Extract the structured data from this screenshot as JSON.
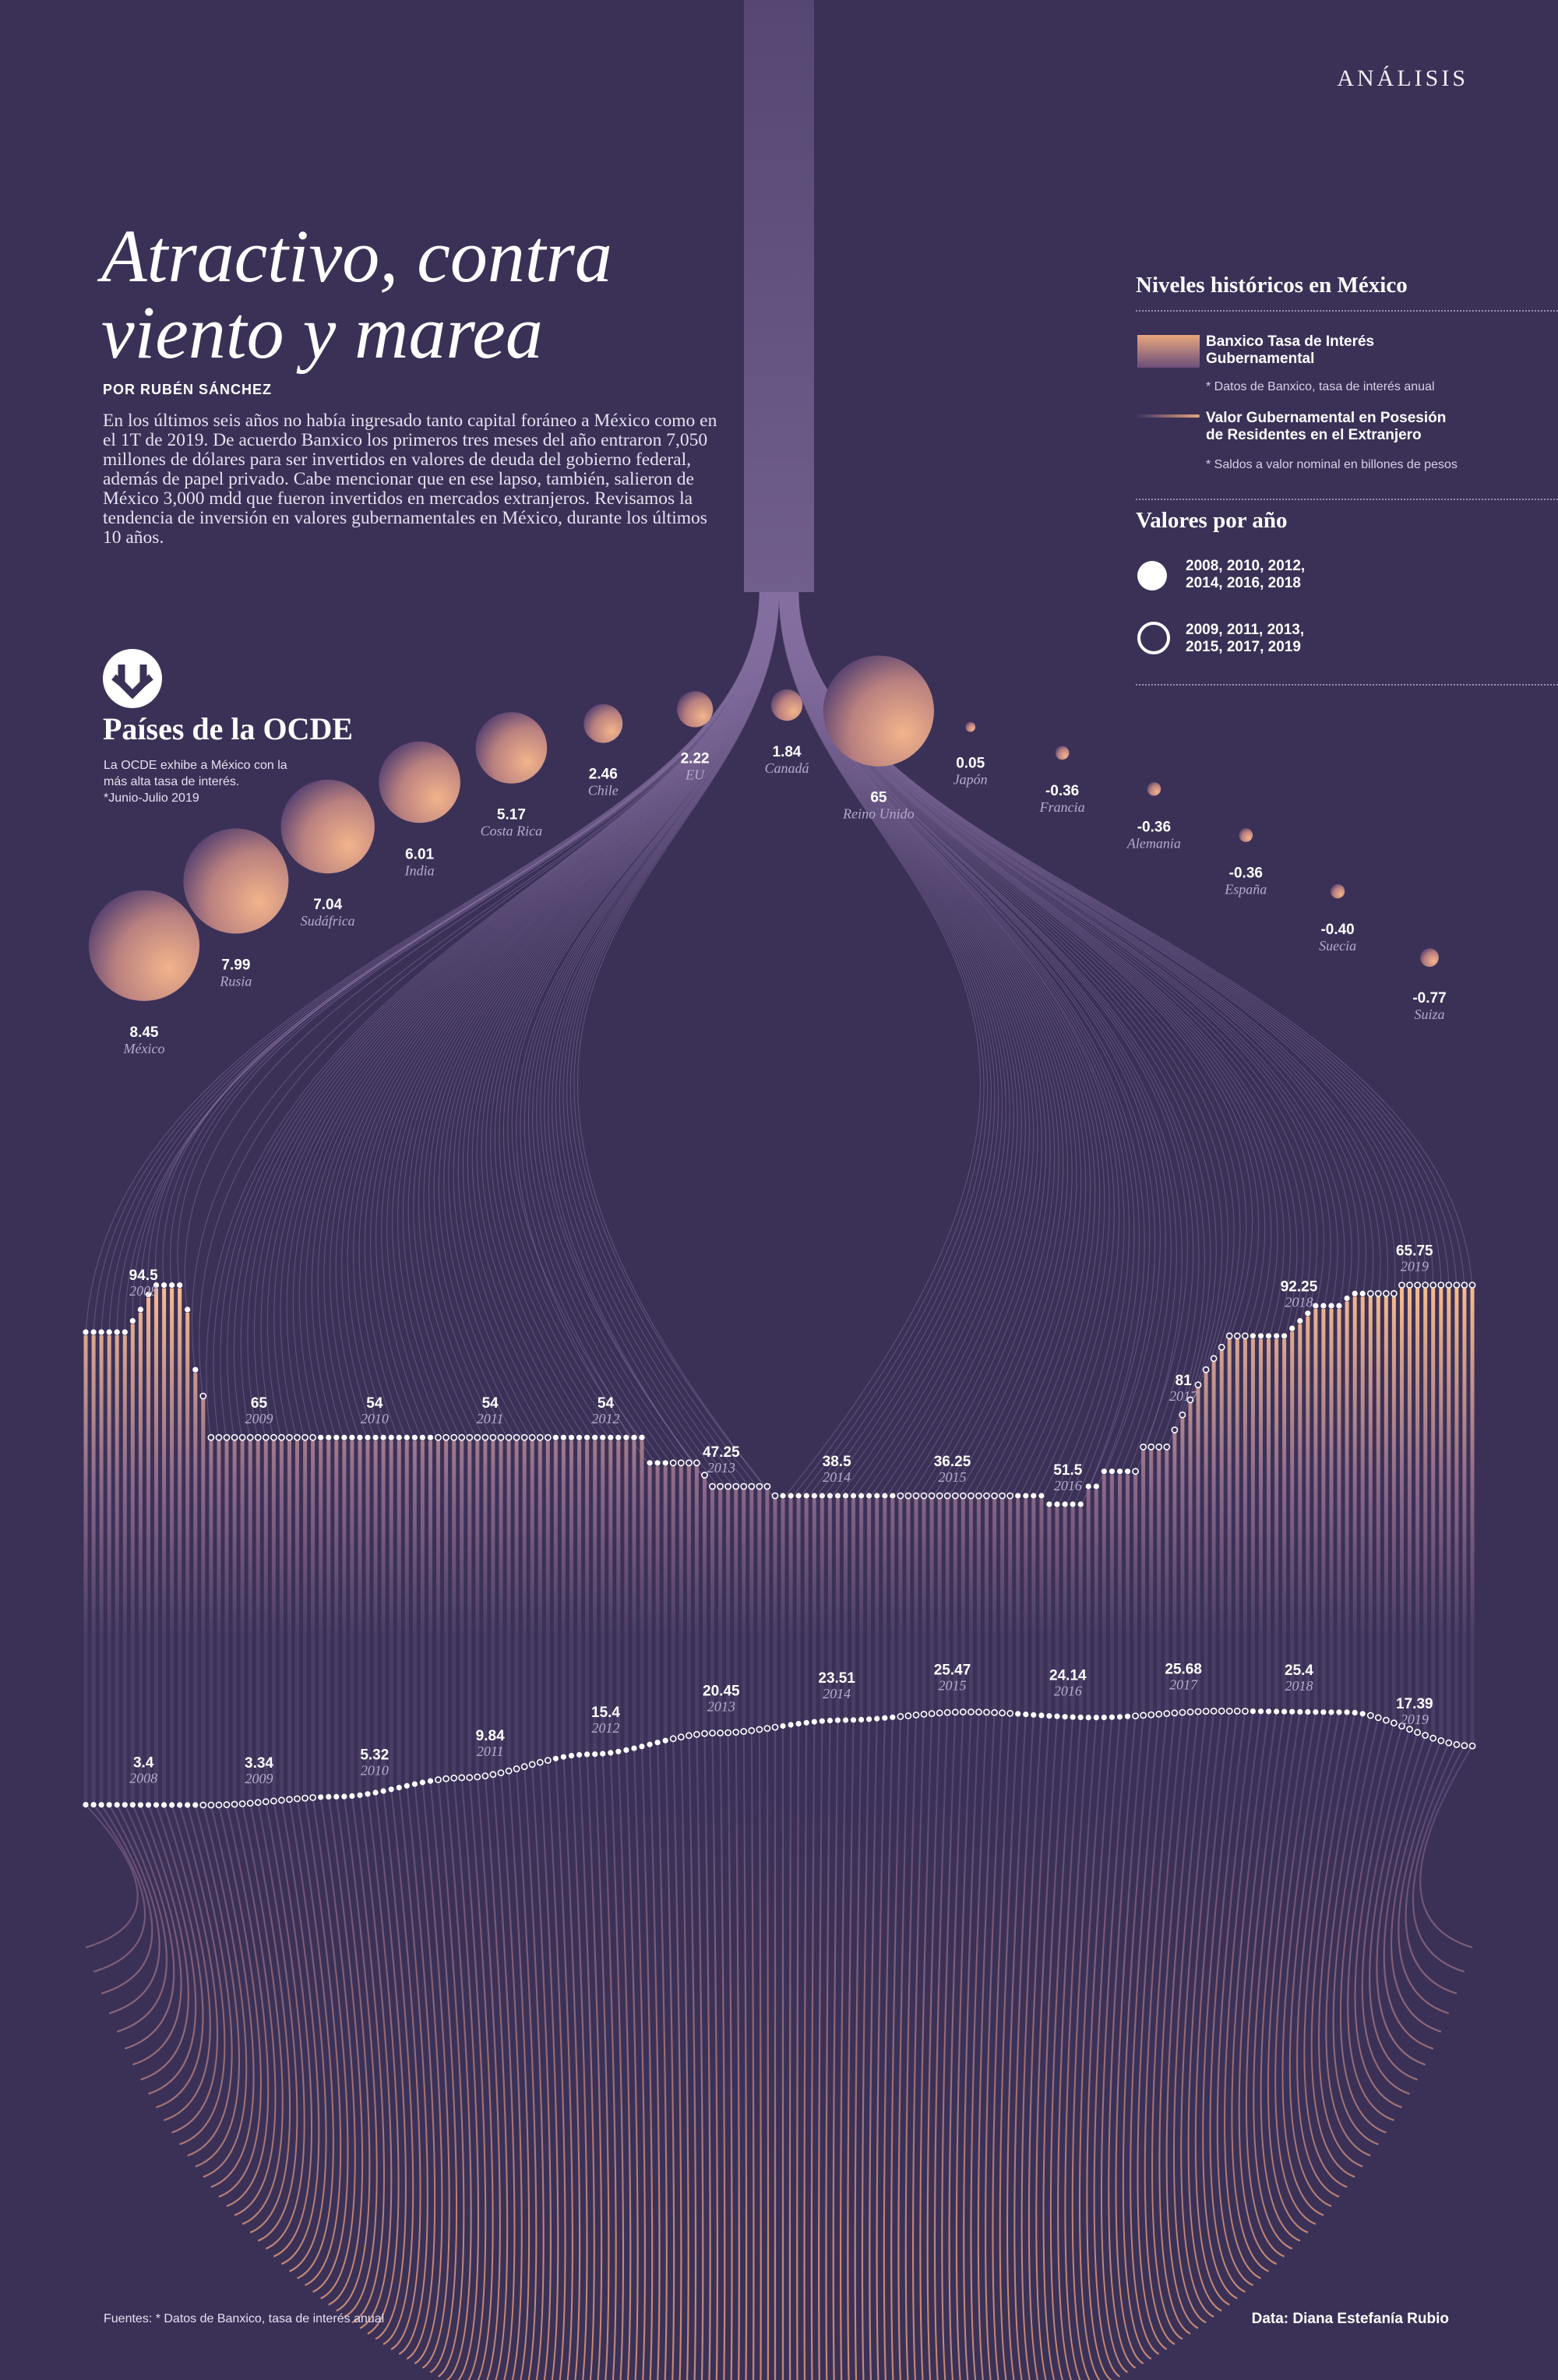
{
  "header": {
    "section": "ANÁLISIS",
    "title_line1": "Atractivo, contra",
    "title_line2": "viento y marea",
    "byline": "POR RUBÉN SÁNCHEZ",
    "intro": "En los últimos seis años no había ingresado tanto capital foráneo a México como en el 1T  de 2019. De acuerdo Banxico los primeros tres meses del año entraron 7,050 millones de dólares para ser invertidos en valores de deuda del gobierno federal, además de papel privado. Cabe mencionar que en ese lapso, también, salieron de México 3,000 mdd que fueron invertidos en mercados extranjeros. Revisamos la tendencia de inversión en valores gubernamentales en México, durante los últimos 10 años."
  },
  "ocde": {
    "icon": "arrow-down-circle-icon",
    "title": "Países de la OCDE",
    "desc_line1": "La OCDE exhibe a México con la",
    "desc_line2": "más alta tasa de interés.",
    "desc_line3": "*Junio-Julio 2019"
  },
  "legend": {
    "title": "Niveles históricos en México",
    "item1_line1": "Banxico Tasa de Interés",
    "item1_line2": "Gubernamental",
    "item1_note": "* Datos de Banxico, tasa de interés anual",
    "item2_line1": "Valor Gubernamental en Posesión",
    "item2_line2": "de Residentes en el Extranjero",
    "item2_note": "* Saldos a valor nominal en billones de pesos",
    "years_title": "Valores por año",
    "filled_line1": "2008, 2010, 2012,",
    "filled_line2": "2014, 2016, 2018",
    "open_line1": "2009, 2011, 2013,",
    "open_line2": "2015, 2017, 2019"
  },
  "footer": {
    "sources": "Fuentes: * Datos de Banxico, tasa de interés anual",
    "credit": "Data: Diana Estefanía Rubio"
  },
  "colors": {
    "background": "#3b3157",
    "accent_light": "#f2b98e",
    "accent_dark": "#6a4d79",
    "line": "#8d77ab"
  },
  "chart_data": [
    {
      "type": "scatter",
      "title": "Países de la OCDE",
      "categories": [
        "México",
        "Rusia",
        "Sudáfrica",
        "India",
        "Costa Rica",
        "Chile",
        "EU",
        "Canadá",
        "Reino Unido",
        "Japón",
        "Francia",
        "Alemania",
        "España",
        "Suecia",
        "Suiza"
      ],
      "values": [
        8.45,
        7.99,
        7.04,
        6.01,
        5.17,
        2.46,
        2.22,
        1.84,
        65,
        0.05,
        -0.36,
        -0.36,
        -0.36,
        -0.4,
        -0.77
      ],
      "value_labels": [
        "8.45",
        "7.99",
        "7.04",
        "6.01",
        "5.17",
        "2.46",
        "2.22",
        "1.84",
        "65",
        "0.05",
        "-0.36",
        "-0.36",
        "-0.36",
        "-0.40",
        "-0.77"
      ]
    },
    {
      "type": "line",
      "title": "Niveles históricos en México",
      "x": [
        "2008",
        "2009",
        "2010",
        "2011",
        "2012",
        "2013",
        "2014",
        "2015",
        "2016",
        "2017",
        "2018",
        "2019"
      ],
      "series": [
        {
          "name": "Banxico Tasa de Interés Gubernamental",
          "labeled_values": [
            94.5,
            65,
            54,
            54,
            54,
            47.25,
            38.5,
            36.25,
            51.5,
            81,
            92.25,
            65.75
          ],
          "label_text": [
            "94.5",
            "65",
            "54",
            "54",
            "54",
            "47.25",
            "38.5",
            "36.25",
            "51.5",
            "81",
            "92.25",
            "65.75"
          ],
          "monthly_levels": [
            82,
            82,
            82,
            82,
            82,
            82,
            85,
            88,
            92,
            94.5,
            94.5,
            94.5,
            94.5,
            88,
            72,
            65,
            54,
            54,
            54,
            54,
            54,
            54,
            54,
            54,
            54,
            54,
            54,
            54,
            54,
            54,
            54,
            54,
            54,
            54,
            54,
            54,
            54,
            54,
            54,
            54,
            54,
            54,
            54,
            54,
            54,
            54,
            54,
            54,
            54,
            54,
            54,
            54,
            54,
            54,
            54,
            54,
            54,
            54,
            54,
            54,
            54,
            54,
            54,
            54,
            54,
            54,
            54,
            54,
            54,
            54,
            54,
            54,
            47.25,
            47.25,
            47.25,
            47.25,
            47.25,
            47.25,
            47.25,
            44,
            41,
            41,
            41,
            41,
            41,
            41,
            41,
            41,
            38.5,
            38.5,
            38.5,
            38.5,
            38.5,
            38.5,
            38.5,
            38.5,
            38.5,
            38.5,
            38.5,
            38.5,
            38.5,
            38.5,
            38.5,
            38.5,
            38.5,
            38.5,
            38.5,
            38.5,
            38.5,
            38.5,
            38.5,
            38.5,
            38.5,
            38.5,
            38.5,
            38.5,
            38.5,
            38.5,
            38.5,
            38.5,
            38.5,
            38.5,
            38.5,
            36.25,
            36.25,
            36.25,
            36.25,
            36.25,
            41,
            41,
            45,
            45,
            45,
            45,
            45,
            51.5,
            51.5,
            51.5,
            51.5,
            56,
            60,
            64,
            68,
            72,
            75,
            78,
            81,
            81,
            81,
            81,
            81,
            81,
            81,
            81,
            83,
            85,
            87,
            89,
            89,
            89,
            89,
            91,
            92.25,
            92.25,
            92.25,
            92.25,
            92.25,
            92.25,
            94.5,
            94.5,
            94.5,
            94.5,
            94.5,
            94.5,
            94.5,
            94.5,
            94.5,
            94.5
          ]
        },
        {
          "name": "Valor Gubernamental en Posesión de Residentes en el Extranjero",
          "labeled_values": [
            3.4,
            3.34,
            5.32,
            9.84,
            15.4,
            20.45,
            23.51,
            25.47,
            24.14,
            25.68,
            25.4,
            17.39
          ],
          "label_text": [
            "3.4",
            "3.34",
            "5.32",
            "9.84",
            "15.4",
            "20.45",
            "23.51",
            "25.47",
            "24.14",
            "25.68",
            "25.4",
            "17.39"
          ]
        }
      ]
    }
  ]
}
